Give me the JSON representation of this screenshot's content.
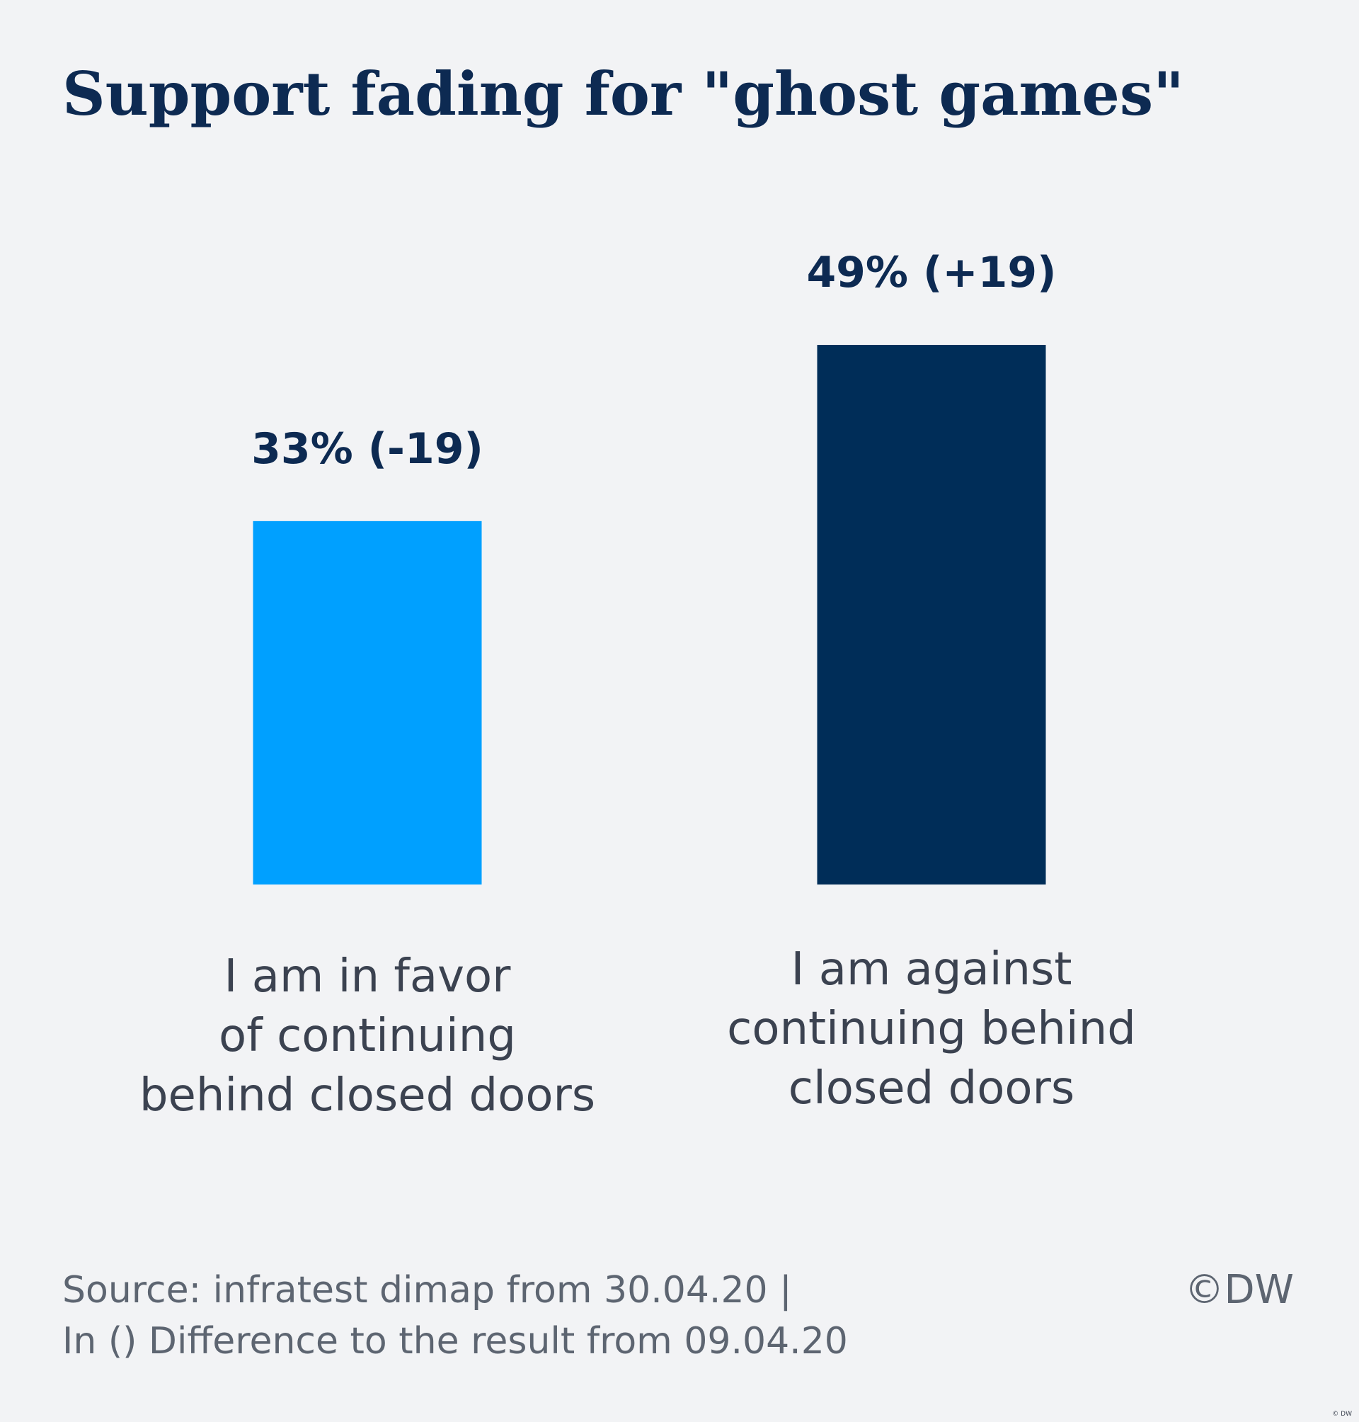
{
  "chart_data": {
    "type": "bar",
    "title": "Support fading for \"ghost games\"",
    "categories": [
      [
        "I am in favor",
        "of continuing",
        "behind closed doors"
      ],
      [
        "I am against",
        "continuing behind",
        "closed doors"
      ]
    ],
    "values": [
      33,
      49
    ],
    "value_labels": [
      "33% (-19)",
      "49% (+19)"
    ],
    "changes": [
      -19,
      19
    ],
    "unit": "%",
    "colors": [
      "#00a0ff",
      "#002d58"
    ],
    "grid": false,
    "xlabel": "",
    "ylabel": ""
  },
  "footer": {
    "source_line1": "Source: infratest dimap from 30.04.20 |",
    "source_line2": "In () Difference to the result from 09.04.20",
    "copyright": "©DW",
    "tiny_credit": "© DW"
  }
}
